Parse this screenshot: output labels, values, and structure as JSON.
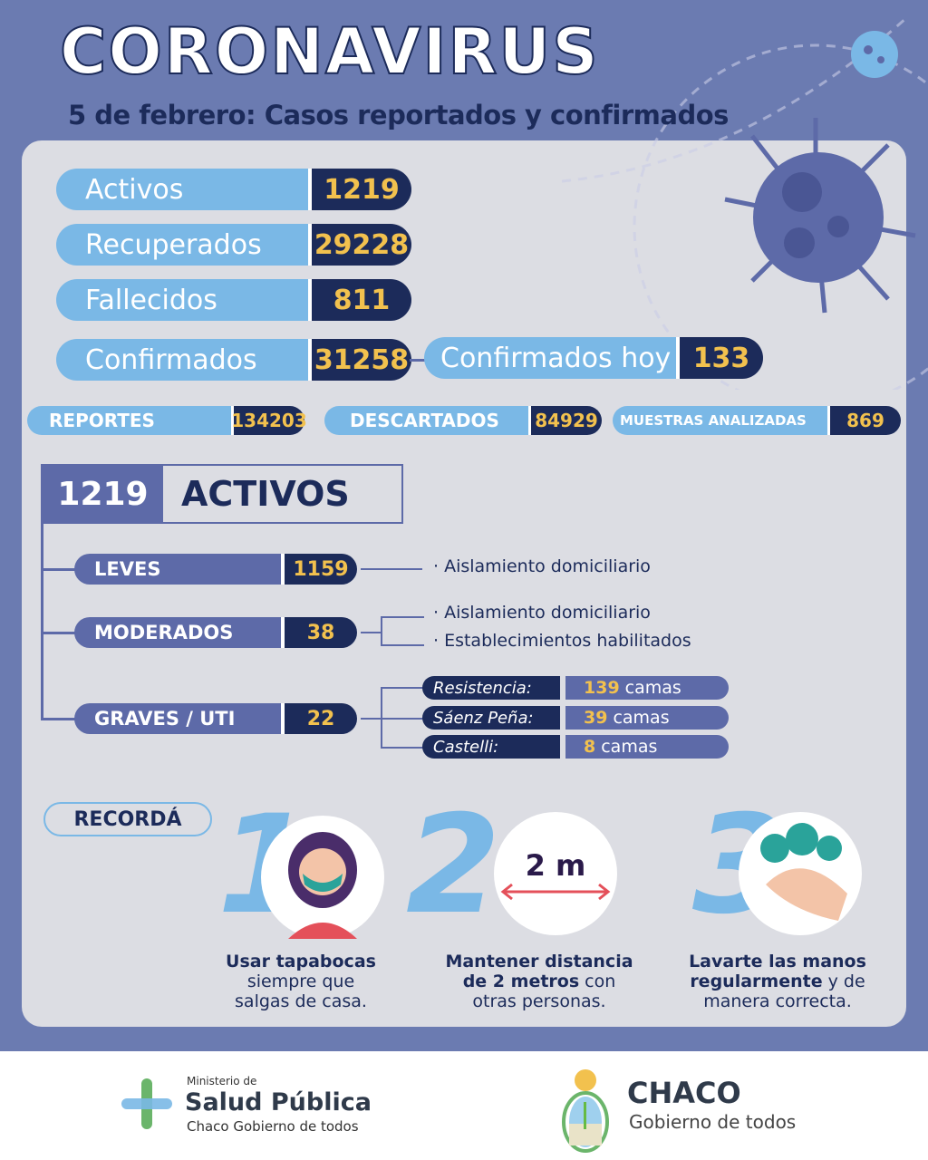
{
  "header": {
    "title": "CORONAVIRUS",
    "subtitle": "5 de febrero: Casos reportados y confirmados"
  },
  "stats": {
    "activos": {
      "label": "Activos",
      "value": "1219"
    },
    "recuperados": {
      "label": "Recuperados",
      "value": "29228"
    },
    "fallecidos": {
      "label": "Fallecidos",
      "value": "811"
    },
    "confirmados": {
      "label": "Confirmados",
      "value": "31258"
    },
    "confirmados_hoy": {
      "label": "Confirmados hoy",
      "value": "133"
    }
  },
  "tests": {
    "reportes": {
      "label": "REPORTES",
      "value": "134203"
    },
    "descartados": {
      "label": "DESCARTADOS",
      "value": "84929"
    },
    "muestras": {
      "label": "MUESTRAS ANALIZADAS",
      "value": "869"
    }
  },
  "active_breakdown": {
    "total": "1219",
    "title": "ACTIVOS",
    "leves": {
      "label": "LEVES",
      "value": "1159",
      "notes": [
        "· Aislamiento domiciliario"
      ]
    },
    "moderados": {
      "label": "MODERADOS",
      "value": "38",
      "notes": [
        "· Aislamiento domiciliario",
        "· Establecimientos habilitados"
      ]
    },
    "graves": {
      "label": "GRAVES / UTI",
      "value": "22",
      "beds": [
        {
          "location": "Resistencia:",
          "count": "139",
          "unit": "camas"
        },
        {
          "location": "Sáenz Peña:",
          "count": "39",
          "unit": "camas"
        },
        {
          "location": "Castelli:",
          "count": "8",
          "unit": "camas"
        }
      ]
    }
  },
  "reminders": {
    "label": "RECORDÁ",
    "items": [
      {
        "number": "1",
        "bold": "Usar tapabocas",
        "text1": "siempre que",
        "text2": "salgas de casa."
      },
      {
        "number": "2",
        "badge": "2 m",
        "bold": "Mantener distancia",
        "bold2": "de 2 metros",
        "text1": " con",
        "text2": "otras personas."
      },
      {
        "number": "3",
        "bold": "Lavarte las manos",
        "bold2": "regularmente",
        "text1": " y de",
        "text2": "manera correcta."
      }
    ]
  },
  "footer": {
    "ministry": {
      "line1": "Ministerio de",
      "line2": "Salud Pública",
      "line3": "Chaco Gobierno de todos"
    },
    "government": {
      "line1": "CHACO",
      "line2": "Gobierno de todos"
    }
  },
  "colors": {
    "background": "#6b7bb1",
    "panel": "#dcdde3",
    "light_blue": "#7ab8e6",
    "navy": "#1c2b5a",
    "yellow": "#f2c14e",
    "purple": "#5d6aa8"
  }
}
